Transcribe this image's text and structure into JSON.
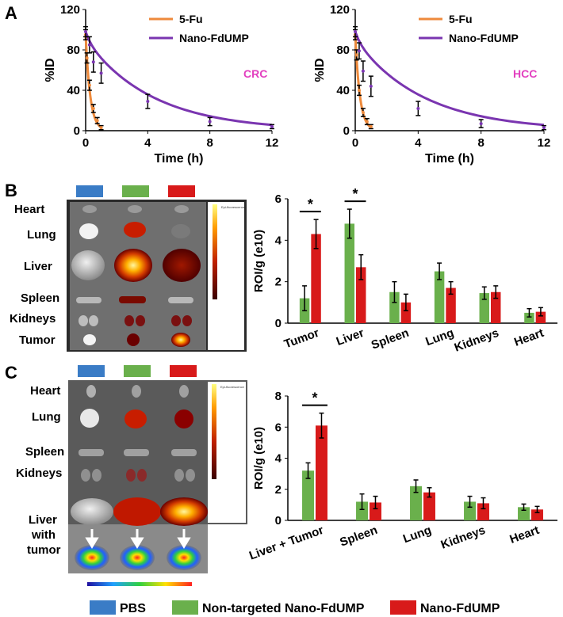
{
  "panels": {
    "a": "A",
    "b": "B",
    "c": "C"
  },
  "colors": {
    "pbs": "#3a7cc6",
    "nontargeted": "#6ab04c",
    "nano": "#d81a1a",
    "fu": "#ee8a3c",
    "nanoLine": "#7a35b0",
    "tumorLabel": "#e23fbf"
  },
  "legend_bottom": {
    "pbs": "PBS",
    "nontargeted": "Non-targeted Nano-FdUMP",
    "nano": "Nano-FdUMP"
  },
  "imaging_b": {
    "organs": [
      "Heart",
      "Lung",
      "Liver",
      "Spleen",
      "Kidneys",
      "Tumor"
    ],
    "scale_caption": "Epi-fluorescence",
    "group_colors": [
      "#3a7cc6",
      "#6ab04c",
      "#d81a1a"
    ]
  },
  "imaging_c": {
    "organs": [
      "Heart",
      "Lung",
      "Spleen",
      "Kidneys"
    ],
    "liver_label": [
      "Liver",
      "with",
      "tumor"
    ],
    "scale_caption": "Epi-fluorescence",
    "group_colors": [
      "#3a7cc6",
      "#6ab04c",
      "#d81a1a"
    ]
  },
  "chart_data": [
    {
      "type": "line",
      "panel": "A",
      "annotation": "CRC",
      "xlabel": "Time (h)",
      "ylabel": "%ID",
      "xlim": [
        0,
        12
      ],
      "ylim": [
        0,
        120
      ],
      "xticks": [
        0,
        4,
        8,
        12
      ],
      "yticks": [
        0,
        40,
        80,
        120
      ],
      "legend": [
        "5-Fu",
        "Nano-FdUMP"
      ],
      "series": [
        {
          "name": "5-Fu",
          "x": [
            0,
            0.083,
            0.25,
            0.5,
            0.75,
            1
          ],
          "y": [
            95,
            72,
            45,
            22,
            10,
            3
          ],
          "err": [
            5,
            5,
            5,
            4,
            3,
            2
          ]
        },
        {
          "name": "Nano-FdUMP",
          "x": [
            0,
            0.25,
            0.5,
            1,
            4,
            8,
            12
          ],
          "y": [
            98,
            85,
            68,
            57,
            29,
            9,
            4
          ],
          "err": [
            5,
            8,
            10,
            10,
            7,
            4,
            2
          ]
        }
      ]
    },
    {
      "type": "line",
      "panel": "A",
      "annotation": "HCC",
      "xlabel": "Time (h)",
      "ylabel": "%ID",
      "xlim": [
        0,
        12
      ],
      "ylim": [
        0,
        120
      ],
      "xticks": [
        0,
        4,
        8,
        12
      ],
      "yticks": [
        0,
        40,
        80,
        120
      ],
      "legend": [
        "5-Fu",
        "Nano-FdUMP"
      ],
      "series": [
        {
          "name": "5-Fu",
          "x": [
            0,
            0.083,
            0.25,
            0.5,
            0.75,
            1
          ],
          "y": [
            95,
            75,
            40,
            18,
            9,
            4
          ],
          "err": [
            5,
            5,
            5,
            4,
            3,
            2
          ]
        },
        {
          "name": "Nano-FdUMP",
          "x": [
            0,
            0.25,
            0.5,
            1,
            4,
            8,
            12
          ],
          "y": [
            98,
            79,
            59,
            44,
            22,
            7,
            3
          ],
          "err": [
            5,
            8,
            10,
            10,
            7,
            4,
            2
          ]
        }
      ]
    },
    {
      "type": "bar",
      "panel": "B",
      "ylabel": "ROI/g (e10)",
      "ylim": [
        0,
        6
      ],
      "yticks": [
        0,
        2,
        4,
        6
      ],
      "categories": [
        "Tumor",
        "Liver",
        "Spleen",
        "Lung",
        "Kidneys",
        "Heart"
      ],
      "series": [
        {
          "name": "Non-targeted Nano-FdUMP",
          "values": [
            1.2,
            4.8,
            1.5,
            2.5,
            1.45,
            0.5
          ],
          "err": [
            0.6,
            0.7,
            0.5,
            0.4,
            0.3,
            0.2
          ]
        },
        {
          "name": "Nano-FdUMP",
          "values": [
            4.3,
            2.7,
            1.0,
            1.7,
            1.5,
            0.55
          ],
          "err": [
            0.7,
            0.6,
            0.4,
            0.3,
            0.3,
            0.2
          ]
        }
      ],
      "significance": [
        {
          "category": "Tumor",
          "label": "*"
        },
        {
          "category": "Liver",
          "label": "*"
        }
      ]
    },
    {
      "type": "bar",
      "panel": "C",
      "ylabel": "ROI/g (e10)",
      "ylim": [
        0,
        8
      ],
      "yticks": [
        0,
        2,
        4,
        6,
        8
      ],
      "categories": [
        "Liver + Tumor",
        "Spleen",
        "Lung",
        "Kidneys",
        "Heart"
      ],
      "series": [
        {
          "name": "Non-targeted Nano-FdUMP",
          "values": [
            3.2,
            1.2,
            2.2,
            1.2,
            0.85
          ],
          "err": [
            0.5,
            0.5,
            0.4,
            0.35,
            0.2
          ]
        },
        {
          "name": "Nano-FdUMP",
          "values": [
            6.1,
            1.15,
            1.8,
            1.1,
            0.7
          ],
          "err": [
            0.8,
            0.4,
            0.3,
            0.35,
            0.2
          ]
        }
      ],
      "significance": [
        {
          "category": "Liver + Tumor",
          "label": "*"
        }
      ]
    }
  ]
}
